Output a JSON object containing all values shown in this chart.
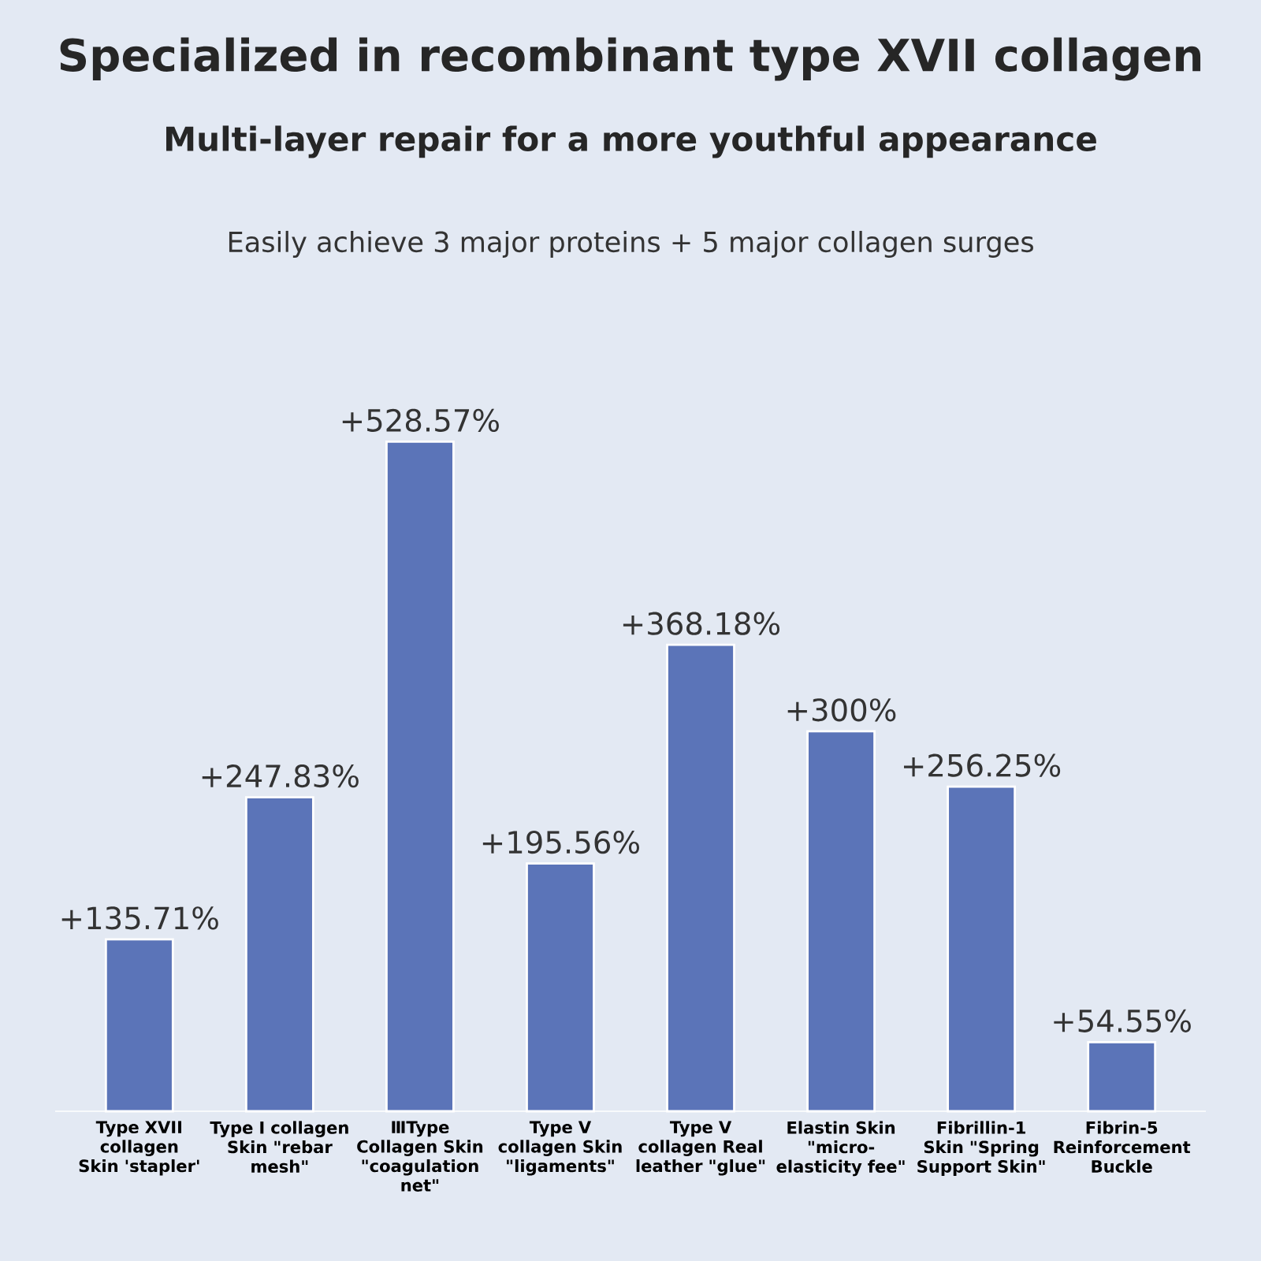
{
  "chart_data": {
    "type": "bar",
    "title": "Specialized in recombinant type XVII collagen",
    "subtitle": "Multi-layer repair for a more youthful appearance",
    "annotations": [
      "Easily achieve 3 major proteins + 5 major collagen surges"
    ],
    "categories": [
      "Type XVII collagen Skin 'stapler'",
      "Type I collagen Skin \"rebar mesh\"",
      "ⅢType Collagen Skin \"coagulation net\"",
      "Type V collagen Skin \"ligaments\"",
      "Type V collagen Real leather \"glue\"",
      "Elastin Skin \"micro-elasticity fee\"",
      "Fibrillin-1 Skin \"Spring Support Skin\"",
      "Fibrin-5 Reinforcement Buckle"
    ],
    "values": [
      135.71,
      247.83,
      528.57,
      195.56,
      368.18,
      300,
      256.25,
      54.55
    ],
    "value_labels": [
      "+135.71%",
      "+247.83%",
      "+528.57%",
      "+195.56%",
      "+368.18%",
      "+300%",
      "+256.25%",
      "+54.55%"
    ],
    "color": "#5b74b8"
  }
}
